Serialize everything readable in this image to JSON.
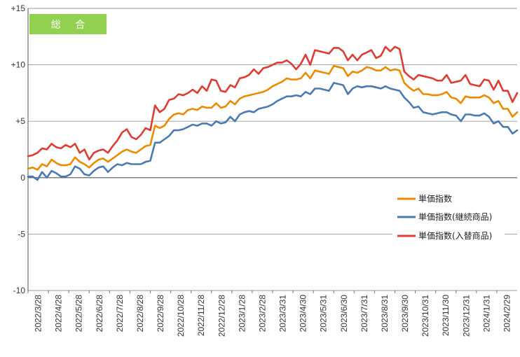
{
  "badge": {
    "label": "総 合",
    "color": "#92d050"
  },
  "chart_data": {
    "type": "line",
    "title": "",
    "xlabel": "",
    "ylabel": "",
    "ylim": [
      -10,
      15
    ],
    "y_ticks": [
      "-10",
      "-5",
      "0",
      "+5",
      "+10",
      "+15"
    ],
    "y_tick_values": [
      -10,
      -5,
      0,
      5,
      10,
      15
    ],
    "grid": true,
    "legend_position": "right-middle",
    "x_tick_labels": [
      "2022/3/28",
      "2022/4/28",
      "2022/5/28",
      "2022/6/28",
      "2022/7/28",
      "2022/8/28",
      "2022/9/28",
      "2022/10/28",
      "2022/11/28",
      "2022/12/28",
      "2023/1/28",
      "2023/2/28",
      "2023/3/31",
      "2023/4/30",
      "2023/5/31",
      "2023/6/30",
      "2023/7/31",
      "2023/8/31",
      "2023/9/30",
      "2023/10/31",
      "2023/11/30",
      "2023/12/31",
      "2024/1/31",
      "2024/2/29"
    ],
    "series": [
      {
        "name": "単価指数",
        "color": "#ed8b00",
        "values": [
          0.8,
          0.9,
          0.7,
          1.2,
          1.0,
          1.6,
          1.3,
          1.1,
          1.1,
          1.2,
          1.8,
          1.4,
          1.2,
          0.9,
          1.3,
          1.6,
          1.7,
          1.4,
          1.7,
          2.0,
          2.3,
          2.5,
          2.3,
          2.2,
          2.5,
          2.8,
          2.9,
          4.6,
          4.4,
          4.6,
          5.2,
          5.6,
          5.7,
          5.6,
          6.0,
          6.1,
          6.0,
          6.3,
          6.2,
          6.2,
          6.6,
          6.2,
          6.3,
          6.8,
          6.5,
          7.0,
          7.2,
          7.3,
          7.4,
          7.5,
          7.6,
          7.8,
          8.1,
          8.3,
          8.5,
          8.8,
          8.7,
          8.7,
          8.8,
          9.3,
          8.8,
          9.5,
          9.4,
          9.3,
          9.2,
          9.9,
          9.8,
          9.7,
          9.0,
          9.4,
          9.3,
          9.5,
          9.8,
          9.7,
          9.5,
          9.5,
          9.8,
          9.5,
          9.6,
          9.5,
          8.4,
          8.0,
          7.7,
          7.9,
          7.4,
          7.4,
          7.3,
          7.3,
          7.4,
          7.6,
          7.1,
          7.0,
          6.6,
          7.2,
          7.1,
          7.1,
          7.1,
          7.3,
          7.1,
          6.6,
          6.8,
          6.1,
          6.1,
          5.4,
          5.8
        ]
      },
      {
        "name": "単価指数(継続商品)",
        "color": "#4a7ab5",
        "values": [
          0.1,
          0.1,
          -0.2,
          0.5,
          0.0,
          0.6,
          0.4,
          0.1,
          0.1,
          0.3,
          1.0,
          0.8,
          0.3,
          0.2,
          0.6,
          0.9,
          1.0,
          0.5,
          0.9,
          1.2,
          1.1,
          1.3,
          1.2,
          1.2,
          1.2,
          1.4,
          1.5,
          3.1,
          3.1,
          3.4,
          3.7,
          4.2,
          4.2,
          4.3,
          4.5,
          4.7,
          4.6,
          4.8,
          4.8,
          4.6,
          5.0,
          4.8,
          4.9,
          5.4,
          5.0,
          5.6,
          5.8,
          5.9,
          5.8,
          6.1,
          6.2,
          6.3,
          6.5,
          6.8,
          7.0,
          7.2,
          7.2,
          7.3,
          7.2,
          7.6,
          7.4,
          7.9,
          7.9,
          7.8,
          7.7,
          8.4,
          8.3,
          8.2,
          7.4,
          7.9,
          8.1,
          8.0,
          8.1,
          8.1,
          8.0,
          7.9,
          8.1,
          7.9,
          7.8,
          7.7,
          7.1,
          6.7,
          6.2,
          6.3,
          5.8,
          5.7,
          5.6,
          5.7,
          5.8,
          5.8,
          5.6,
          5.5,
          5.0,
          5.6,
          5.6,
          5.5,
          5.5,
          5.7,
          5.4,
          4.8,
          5.0,
          4.5,
          4.5,
          3.9,
          4.2
        ]
      },
      {
        "name": "単価指数(入替商品)",
        "color": "#e03c31",
        "values": [
          1.9,
          2.0,
          2.2,
          2.6,
          2.5,
          3.0,
          2.7,
          2.6,
          2.9,
          2.7,
          3.0,
          2.2,
          2.5,
          1.6,
          2.2,
          2.4,
          2.5,
          2.2,
          2.8,
          3.3,
          4.0,
          4.3,
          3.6,
          3.4,
          3.8,
          4.4,
          4.2,
          6.4,
          5.8,
          6.1,
          6.9,
          7.0,
          7.4,
          7.3,
          7.5,
          7.8,
          7.5,
          8.1,
          7.7,
          8.7,
          8.6,
          7.7,
          7.6,
          8.2,
          8.0,
          8.8,
          8.9,
          9.1,
          9.6,
          9.2,
          9.7,
          9.8,
          10.0,
          10.2,
          10.2,
          10.4,
          10.1,
          9.6,
          10.1,
          10.9,
          10.0,
          11.3,
          11.2,
          11.1,
          11.0,
          11.5,
          11.5,
          11.2,
          10.4,
          10.9,
          10.4,
          10.9,
          11.1,
          11.3,
          10.6,
          10.8,
          11.6,
          11.2,
          11.6,
          11.4,
          9.4,
          9.0,
          8.7,
          9.1,
          9.0,
          8.9,
          8.8,
          8.6,
          8.6,
          9.1,
          8.4,
          8.5,
          8.6,
          9.1,
          8.3,
          8.2,
          8.1,
          8.7,
          8.6,
          7.8,
          8.6,
          7.7,
          7.7,
          6.7,
          7.5
        ]
      }
    ]
  }
}
